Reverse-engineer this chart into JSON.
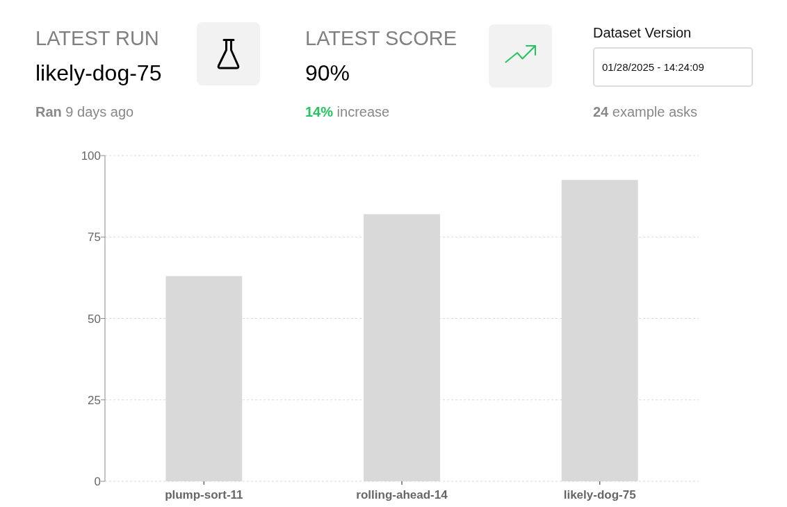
{
  "chart_data": [
    {
      "type": "other",
      "annotations": [
        "LATEST RUN",
        "likely-dog-75",
        "Ran 9 days ago",
        "LATEST SCORE",
        "90%",
        "14% increase",
        "Dataset Version",
        "01/28/2025 - 14:24:09",
        "24 example asks"
      ]
    },
    {
      "type": "bar",
      "categories": [
        "plump-sort-11",
        "rolling-ahead-14",
        "likely-dog-75"
      ],
      "values": [
        63,
        82,
        92.5
      ],
      "color": "#d9d9d9",
      "ylim": [
        0,
        100
      ],
      "yticks": [
        0,
        25,
        50,
        75,
        100
      ],
      "grid": "y"
    }
  ]
}
